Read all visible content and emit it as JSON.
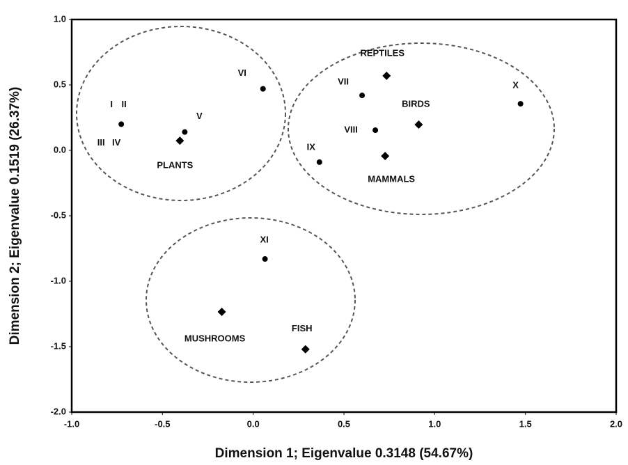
{
  "chart_data": {
    "type": "scatter",
    "xlabel": "Dimension 1; Eigenvalue 0.3148 (54.67%)",
    "ylabel": "Dimension 2; Eigenvalue 0.1519 (26.37%)",
    "xlim": [
      -1,
      2
    ],
    "ylim": [
      -2,
      1
    ],
    "xticks": [
      {
        "value": -1,
        "label": "-1.0"
      },
      -0.5,
      {
        "value": 0,
        "label": "0.0"
      },
      0.5,
      {
        "value": 1,
        "label": "1.0"
      },
      1.5,
      {
        "value": 2,
        "label": "2.0"
      }
    ],
    "yticks": [
      {
        "value": -2,
        "label": "-2.0"
      },
      -1.5,
      {
        "value": -1,
        "label": "-1.0"
      },
      -0.5,
      {
        "value": 0,
        "label": "0.0"
      },
      0.5,
      {
        "value": 1,
        "label": "1.0"
      }
    ],
    "series": [
      {
        "marker": "circle",
        "color": "#000000",
        "x": [
          -0.727,
          -0.377,
          0.054,
          0.6,
          0.673,
          0.365,
          1.473,
          0.065
        ],
        "values": [
          0.2,
          0.14,
          0.47,
          0.42,
          0.154,
          -0.09,
          0.356,
          -0.83
        ],
        "labels": [
          [
            "I",
            "II",
            "III",
            "IV"
          ],
          [
            "V"
          ],
          [
            "VI"
          ],
          [
            "VII"
          ],
          [
            "VIII"
          ],
          [
            "IX"
          ],
          [
            "X"
          ],
          [
            "XI"
          ]
        ]
      },
      {
        "marker": "diamond",
        "color": "#000000",
        "x": [
          0.735,
          0.912,
          0.727,
          -0.404,
          -0.173,
          0.288
        ],
        "values": [
          0.57,
          0.197,
          -0.043,
          0.074,
          -1.234,
          -1.52
        ],
        "labels": [
          [
            "REPTILES"
          ],
          [
            "BIRDS"
          ],
          [
            "MAMMALS"
          ],
          [
            "PLANTS"
          ],
          [
            "MUSHROOMS"
          ],
          [
            "FISH"
          ]
        ]
      }
    ]
  }
}
